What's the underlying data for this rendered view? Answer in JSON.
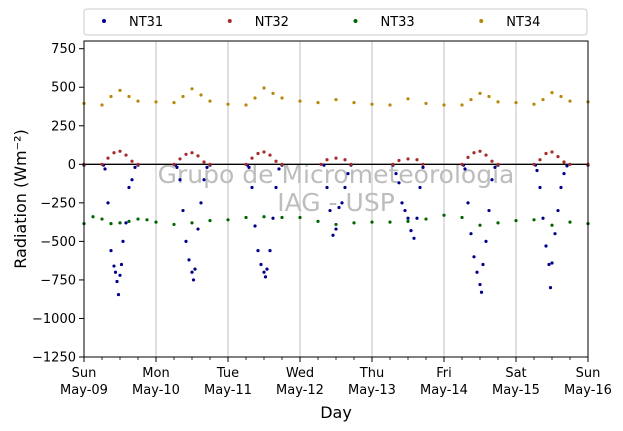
{
  "chart_data": {
    "type": "scatter",
    "title": "",
    "xlabel": "Day",
    "ylabel": "Radiation (Wm⁻²)",
    "ylim": [
      -1250,
      800
    ],
    "yticks": [
      -1250,
      -1000,
      -750,
      -500,
      -250,
      0,
      250,
      500,
      750
    ],
    "ytick_labels": [
      "−1250",
      "−1000",
      "−750",
      "−500",
      "−250",
      "0",
      "250",
      "500",
      "750"
    ],
    "xlim": [
      "2021-05-09 00:00",
      "2021-05-16 00:00"
    ],
    "xticks": [
      {
        "weekday": "Sun",
        "date": "May-09"
      },
      {
        "weekday": "Mon",
        "date": "May-10"
      },
      {
        "weekday": "Tue",
        "date": "May-11"
      },
      {
        "weekday": "Wed",
        "date": "May-12"
      },
      {
        "weekday": "Thu",
        "date": "May-13"
      },
      {
        "weekday": "Fri",
        "date": "May-14"
      },
      {
        "weekday": "Sat",
        "date": "May-15"
      },
      {
        "weekday": "Sun",
        "date": "May-16"
      }
    ],
    "grid": "vertical",
    "legend_position": "top",
    "watermark": [
      "Grupo de Micrometeorologia",
      "IAG - USP"
    ],
    "series": [
      {
        "name": "NT31",
        "color": "#00008b",
        "points": [
          [
            "2021-05-09 00:00",
            -5
          ],
          [
            "2021-05-09 06:30",
            -5
          ],
          [
            "2021-05-09 07:00",
            -30
          ],
          [
            "2021-05-09 08:00",
            -250
          ],
          [
            "2021-05-09 09:00",
            -560
          ],
          [
            "2021-05-09 10:00",
            -660
          ],
          [
            "2021-05-09 10:30",
            -700
          ],
          [
            "2021-05-09 11:00",
            -760
          ],
          [
            "2021-05-09 11:30",
            -845
          ],
          [
            "2021-05-09 12:00",
            -720
          ],
          [
            "2021-05-09 12:30",
            -650
          ],
          [
            "2021-05-09 13:00",
            -500
          ],
          [
            "2021-05-09 14:00",
            -380
          ],
          [
            "2021-05-09 15:00",
            -150
          ],
          [
            "2021-05-09 16:00",
            -100
          ],
          [
            "2021-05-09 17:00",
            -20
          ],
          [
            "2021-05-09 18:00",
            -5
          ],
          [
            "2021-05-10 06:30",
            -5
          ],
          [
            "2021-05-10 07:00",
            -20
          ],
          [
            "2021-05-10 08:00",
            -100
          ],
          [
            "2021-05-10 09:00",
            -300
          ],
          [
            "2021-05-10 10:00",
            -500
          ],
          [
            "2021-05-10 11:00",
            -620
          ],
          [
            "2021-05-10 12:00",
            -700
          ],
          [
            "2021-05-10 12:30",
            -750
          ],
          [
            "2021-05-10 13:00",
            -680
          ],
          [
            "2021-05-10 14:00",
            -420
          ],
          [
            "2021-05-10 15:00",
            -250
          ],
          [
            "2021-05-10 16:00",
            -100
          ],
          [
            "2021-05-10 17:00",
            -20
          ],
          [
            "2021-05-10 18:00",
            -5
          ],
          [
            "2021-05-11 06:30",
            -5
          ],
          [
            "2021-05-11 07:00",
            -20
          ],
          [
            "2021-05-11 08:00",
            -150
          ],
          [
            "2021-05-11 09:00",
            -400
          ],
          [
            "2021-05-11 10:00",
            -560
          ],
          [
            "2021-05-11 11:00",
            -650
          ],
          [
            "2021-05-11 12:00",
            -700
          ],
          [
            "2021-05-11 12:30",
            -730
          ],
          [
            "2021-05-11 13:00",
            -680
          ],
          [
            "2021-05-11 14:00",
            -560
          ],
          [
            "2021-05-11 15:00",
            -350
          ],
          [
            "2021-05-11 16:00",
            -150
          ],
          [
            "2021-05-11 17:00",
            -30
          ],
          [
            "2021-05-11 18:00",
            -5
          ],
          [
            "2021-05-12 08:00",
            -5
          ],
          [
            "2021-05-12 09:00",
            -150
          ],
          [
            "2021-05-12 10:00",
            -300
          ],
          [
            "2021-05-12 11:00",
            -460
          ],
          [
            "2021-05-12 12:00",
            -420
          ],
          [
            "2021-05-12 13:00",
            -280
          ],
          [
            "2021-05-12 14:00",
            -250
          ],
          [
            "2021-05-12 15:00",
            -150
          ],
          [
            "2021-05-12 16:00",
            -60
          ],
          [
            "2021-05-12 17:00",
            -5
          ],
          [
            "2021-05-13 07:00",
            -5
          ],
          [
            "2021-05-13 08:00",
            -60
          ],
          [
            "2021-05-13 09:00",
            -120
          ],
          [
            "2021-05-13 10:00",
            -250
          ],
          [
            "2021-05-13 11:00",
            -300
          ],
          [
            "2021-05-13 12:00",
            -350
          ],
          [
            "2021-05-13 13:00",
            -430
          ],
          [
            "2021-05-13 14:00",
            -480
          ],
          [
            "2021-05-13 15:00",
            -350
          ],
          [
            "2021-05-13 16:00",
            -150
          ],
          [
            "2021-05-13 17:00",
            -20
          ],
          [
            "2021-05-14 06:30",
            -5
          ],
          [
            "2021-05-14 07:00",
            -30
          ],
          [
            "2021-05-14 08:00",
            -250
          ],
          [
            "2021-05-14 09:00",
            -450
          ],
          [
            "2021-05-14 10:00",
            -600
          ],
          [
            "2021-05-14 11:00",
            -700
          ],
          [
            "2021-05-14 12:00",
            -780
          ],
          [
            "2021-05-14 12:30",
            -830
          ],
          [
            "2021-05-14 13:00",
            -650
          ],
          [
            "2021-05-14 14:00",
            -500
          ],
          [
            "2021-05-14 15:00",
            -300
          ],
          [
            "2021-05-14 16:00",
            -100
          ],
          [
            "2021-05-14 17:00",
            -20
          ],
          [
            "2021-05-14 18:00",
            -5
          ],
          [
            "2021-05-15 06:30",
            -5
          ],
          [
            "2021-05-15 07:00",
            -40
          ],
          [
            "2021-05-15 08:00",
            -150
          ],
          [
            "2021-05-15 09:00",
            -350
          ],
          [
            "2021-05-15 10:00",
            -530
          ],
          [
            "2021-05-15 11:00",
            -650
          ],
          [
            "2021-05-15 11:30",
            -800
          ],
          [
            "2021-05-15 12:00",
            -640
          ],
          [
            "2021-05-15 13:00",
            -450
          ],
          [
            "2021-05-15 14:00",
            -300
          ],
          [
            "2021-05-15 15:00",
            -150
          ],
          [
            "2021-05-15 16:00",
            -60
          ],
          [
            "2021-05-15 17:00",
            -10
          ],
          [
            "2021-05-16 00:00",
            -5
          ]
        ]
      },
      {
        "name": "NT32",
        "color": "#a52a2a",
        "points": [
          [
            "2021-05-09 00:00",
            0
          ],
          [
            "2021-05-09 06:00",
            0
          ],
          [
            "2021-05-09 08:00",
            40
          ],
          [
            "2021-05-09 10:00",
            75
          ],
          [
            "2021-05-09 12:00",
            85
          ],
          [
            "2021-05-09 14:00",
            60
          ],
          [
            "2021-05-09 16:00",
            20
          ],
          [
            "2021-05-09 18:00",
            0
          ],
          [
            "2021-05-10 06:00",
            0
          ],
          [
            "2021-05-10 08:00",
            35
          ],
          [
            "2021-05-10 10:00",
            65
          ],
          [
            "2021-05-10 12:00",
            75
          ],
          [
            "2021-05-10 14:00",
            55
          ],
          [
            "2021-05-10 16:00",
            15
          ],
          [
            "2021-05-10 18:00",
            0
          ],
          [
            "2021-05-11 06:00",
            0
          ],
          [
            "2021-05-11 08:00",
            40
          ],
          [
            "2021-05-11 10:00",
            70
          ],
          [
            "2021-05-11 12:00",
            80
          ],
          [
            "2021-05-11 14:00",
            60
          ],
          [
            "2021-05-11 16:00",
            20
          ],
          [
            "2021-05-11 18:00",
            0
          ],
          [
            "2021-05-12 07:00",
            0
          ],
          [
            "2021-05-12 09:00",
            30
          ],
          [
            "2021-05-12 12:00",
            40
          ],
          [
            "2021-05-12 15:00",
            30
          ],
          [
            "2021-05-12 17:00",
            0
          ],
          [
            "2021-05-13 07:00",
            0
          ],
          [
            "2021-05-13 09:00",
            25
          ],
          [
            "2021-05-13 12:00",
            35
          ],
          [
            "2021-05-13 15:00",
            30
          ],
          [
            "2021-05-13 17:00",
            0
          ],
          [
            "2021-05-14 06:00",
            0
          ],
          [
            "2021-05-14 08:00",
            45
          ],
          [
            "2021-05-14 10:00",
            75
          ],
          [
            "2021-05-14 12:00",
            85
          ],
          [
            "2021-05-14 14:00",
            60
          ],
          [
            "2021-05-14 16:00",
            20
          ],
          [
            "2021-05-14 18:00",
            0
          ],
          [
            "2021-05-15 06:00",
            0
          ],
          [
            "2021-05-15 08:00",
            30
          ],
          [
            "2021-05-15 10:00",
            70
          ],
          [
            "2021-05-15 12:00",
            80
          ],
          [
            "2021-05-15 14:00",
            50
          ],
          [
            "2021-05-15 16:00",
            15
          ],
          [
            "2021-05-15 18:00",
            0
          ],
          [
            "2021-05-16 00:00",
            0
          ]
        ]
      },
      {
        "name": "NT33",
        "color": "#006400",
        "points": [
          [
            "2021-05-09 00:00",
            -385
          ],
          [
            "2021-05-09 03:00",
            -340
          ],
          [
            "2021-05-09 06:00",
            -355
          ],
          [
            "2021-05-09 09:00",
            -385
          ],
          [
            "2021-05-09 12:00",
            -380
          ],
          [
            "2021-05-09 15:00",
            -370
          ],
          [
            "2021-05-09 18:00",
            -355
          ],
          [
            "2021-05-09 21:00",
            -360
          ],
          [
            "2021-05-10 00:00",
            -375
          ],
          [
            "2021-05-10 06:00",
            -390
          ],
          [
            "2021-05-10 12:00",
            -380
          ],
          [
            "2021-05-10 18:00",
            -365
          ],
          [
            "2021-05-11 00:00",
            -360
          ],
          [
            "2021-05-11 06:00",
            -345
          ],
          [
            "2021-05-11 12:00",
            -340
          ],
          [
            "2021-05-11 18:00",
            -345
          ],
          [
            "2021-05-12 00:00",
            -345
          ],
          [
            "2021-05-12 06:00",
            -370
          ],
          [
            "2021-05-12 12:00",
            -390
          ],
          [
            "2021-05-12 18:00",
            -380
          ],
          [
            "2021-05-13 00:00",
            -375
          ],
          [
            "2021-05-13 06:00",
            -375
          ],
          [
            "2021-05-13 12:00",
            -370
          ],
          [
            "2021-05-13 18:00",
            -355
          ],
          [
            "2021-05-14 00:00",
            -330
          ],
          [
            "2021-05-14 06:00",
            -345
          ],
          [
            "2021-05-14 12:00",
            -395
          ],
          [
            "2021-05-14 18:00",
            -380
          ],
          [
            "2021-05-15 00:00",
            -365
          ],
          [
            "2021-05-15 06:00",
            -360
          ],
          [
            "2021-05-15 12:00",
            -395
          ],
          [
            "2021-05-15 18:00",
            -375
          ],
          [
            "2021-05-16 00:00",
            -385
          ]
        ]
      },
      {
        "name": "NT34",
        "color": "#b8860b",
        "points": [
          [
            "2021-05-09 00:00",
            395
          ],
          [
            "2021-05-09 06:00",
            385
          ],
          [
            "2021-05-09 09:00",
            440
          ],
          [
            "2021-05-09 12:00",
            480
          ],
          [
            "2021-05-09 15:00",
            440
          ],
          [
            "2021-05-09 18:00",
            410
          ],
          [
            "2021-05-10 00:00",
            405
          ],
          [
            "2021-05-10 06:00",
            400
          ],
          [
            "2021-05-10 09:00",
            440
          ],
          [
            "2021-05-10 12:00",
            490
          ],
          [
            "2021-05-10 15:00",
            450
          ],
          [
            "2021-05-10 18:00",
            410
          ],
          [
            "2021-05-11 00:00",
            390
          ],
          [
            "2021-05-11 06:00",
            385
          ],
          [
            "2021-05-11 09:00",
            430
          ],
          [
            "2021-05-11 12:00",
            495
          ],
          [
            "2021-05-11 15:00",
            460
          ],
          [
            "2021-05-11 18:00",
            430
          ],
          [
            "2021-05-12 00:00",
            410
          ],
          [
            "2021-05-12 06:00",
            400
          ],
          [
            "2021-05-12 12:00",
            420
          ],
          [
            "2021-05-12 18:00",
            400
          ],
          [
            "2021-05-13 00:00",
            390
          ],
          [
            "2021-05-13 06:00",
            385
          ],
          [
            "2021-05-13 12:00",
            425
          ],
          [
            "2021-05-13 18:00",
            395
          ],
          [
            "2021-05-14 00:00",
            385
          ],
          [
            "2021-05-14 06:00",
            385
          ],
          [
            "2021-05-14 09:00",
            420
          ],
          [
            "2021-05-14 12:00",
            460
          ],
          [
            "2021-05-14 15:00",
            440
          ],
          [
            "2021-05-14 18:00",
            405
          ],
          [
            "2021-05-15 00:00",
            400
          ],
          [
            "2021-05-15 06:00",
            390
          ],
          [
            "2021-05-15 09:00",
            420
          ],
          [
            "2021-05-15 12:00",
            465
          ],
          [
            "2021-05-15 15:00",
            440
          ],
          [
            "2021-05-15 18:00",
            410
          ],
          [
            "2021-05-16 00:00",
            405
          ]
        ]
      }
    ]
  }
}
